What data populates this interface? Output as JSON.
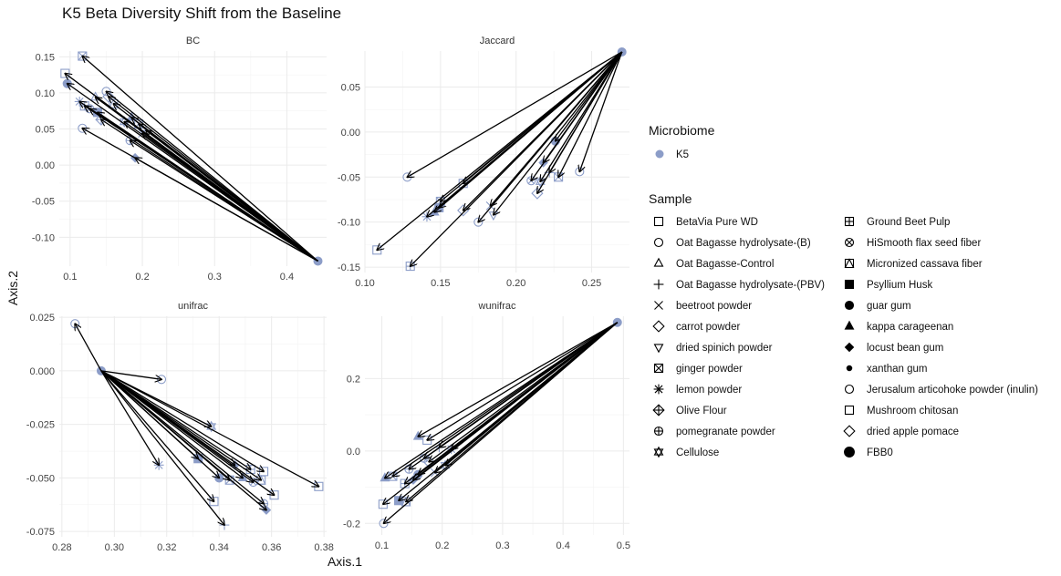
{
  "chart_data": {
    "type": "scatter",
    "title": "K5 Beta Diversity Shift from the Baseline",
    "xlabel": "Axis.1",
    "ylabel": "Axis.2",
    "grid": true,
    "legend_placement": "right",
    "colors": {
      "point": "#8C9DC8",
      "arrow": "#000000",
      "grid": "#EBEBEB"
    },
    "legend": {
      "microbiome_title": "Microbiome",
      "microbiome_items": [
        {
          "label": "K5",
          "color": "#8C9DC8"
        }
      ],
      "sample_title": "Sample",
      "sample_items": [
        {
          "label": "BetaVia Pure WD",
          "shape": "square-open"
        },
        {
          "label": "Oat Bagasse hydrolysate-(B)",
          "shape": "circle-open"
        },
        {
          "label": "Oat Bagasse-Control",
          "shape": "triangle-open"
        },
        {
          "label": "Oat Bagasse hydrolysate-(PBV)",
          "shape": "plus"
        },
        {
          "label": "beetroot powder",
          "shape": "cross"
        },
        {
          "label": "carrot powder",
          "shape": "diamond-open"
        },
        {
          "label": "dried spinich powder",
          "shape": "triangle-down-open"
        },
        {
          "label": "ginger powder",
          "shape": "square-cross"
        },
        {
          "label": "lemon powder",
          "shape": "asterisk"
        },
        {
          "label": "Olive Flour",
          "shape": "diamond-plus"
        },
        {
          "label": "pomegranate powder",
          "shape": "circle-plus"
        },
        {
          "label": "Cellulose",
          "shape": "star-of-david"
        },
        {
          "label": "Ground Beet Pulp",
          "shape": "square-plus"
        },
        {
          "label": "HiSmooth flax seed fiber",
          "shape": "circle-cross"
        },
        {
          "label": "Micronized cassava fiber",
          "shape": "square-triangle"
        },
        {
          "label": "Psyllium Husk",
          "shape": "square-filled"
        },
        {
          "label": "guar gum",
          "shape": "circle-filled"
        },
        {
          "label": "kappa carageenan",
          "shape": "triangle-filled"
        },
        {
          "label": "locust bean gum",
          "shape": "diamond-filled"
        },
        {
          "label": "xanthan gum",
          "shape": "dot-small"
        },
        {
          "label": "Jerusalum articohoke powder (inulin)",
          "shape": "circle-open"
        },
        {
          "label": "Mushroom chitosan",
          "shape": "square-open"
        },
        {
          "label": "dried apple pomace",
          "shape": "diamond-open"
        },
        {
          "label": "FBB0",
          "shape": "circle-filled-large"
        }
      ]
    },
    "panels": [
      {
        "name": "BC",
        "xlim": [
          0.085,
          0.455
        ],
        "ylim": [
          -0.14,
          0.158
        ],
        "xticks": [
          0.1,
          0.2,
          0.3,
          0.4
        ],
        "xtick_labels": [
          "0.1",
          "0.2",
          "0.3",
          "0.4"
        ],
        "yticks": [
          -0.1,
          -0.05,
          0.0,
          0.05,
          0.1,
          0.15
        ],
        "ytick_labels": [
          "-0.10",
          "-0.05",
          "0.00",
          "0.05",
          "0.10",
          "0.15"
        ],
        "baseline": [
          0.443,
          -0.133
        ],
        "points": [
          {
            "x": 0.117,
            "y": 0.151,
            "shape": "square-cross"
          },
          {
            "x": 0.093,
            "y": 0.127,
            "shape": "square-open"
          },
          {
            "x": 0.096,
            "y": 0.113,
            "shape": "circle-filled"
          },
          {
            "x": 0.15,
            "y": 0.102,
            "shape": "circle-open"
          },
          {
            "x": 0.153,
            "y": 0.095,
            "shape": "diamond-open"
          },
          {
            "x": 0.135,
            "y": 0.094,
            "shape": "triangle-open"
          },
          {
            "x": 0.16,
            "y": 0.085,
            "shape": "square-triangle"
          },
          {
            "x": 0.113,
            "y": 0.088,
            "shape": "asterisk"
          },
          {
            "x": 0.12,
            "y": 0.082,
            "shape": "square-plus"
          },
          {
            "x": 0.127,
            "y": 0.078,
            "shape": "circle-cross"
          },
          {
            "x": 0.138,
            "y": 0.073,
            "shape": "square-filled"
          },
          {
            "x": 0.143,
            "y": 0.063,
            "shape": "diamond-plus"
          },
          {
            "x": 0.175,
            "y": 0.06,
            "shape": "star-of-david"
          },
          {
            "x": 0.185,
            "y": 0.066,
            "shape": "triangle-filled"
          },
          {
            "x": 0.195,
            "y": 0.057,
            "shape": "square-cross"
          },
          {
            "x": 0.205,
            "y": 0.048,
            "shape": "plus"
          },
          {
            "x": 0.2,
            "y": 0.044,
            "shape": "cross"
          },
          {
            "x": 0.117,
            "y": 0.051,
            "shape": "circle-open"
          },
          {
            "x": 0.183,
            "y": 0.034,
            "shape": "circle-plus"
          },
          {
            "x": 0.19,
            "y": 0.01,
            "shape": "diamond-filled"
          }
        ]
      },
      {
        "name": "Jaccard",
        "xlim": [
          0.1,
          0.275
        ],
        "ylim": [
          -0.156,
          0.09
        ],
        "xticks": [
          0.1,
          0.15,
          0.2,
          0.25
        ],
        "xtick_labels": [
          "0.10",
          "0.15",
          "0.20",
          "0.25"
        ],
        "yticks": [
          -0.15,
          -0.1,
          -0.05,
          0.0,
          0.05
        ],
        "ytick_labels": [
          "-0.15",
          "-0.10",
          "-0.05",
          "0.00",
          "0.05"
        ],
        "baseline": [
          0.27,
          0.089
        ],
        "points": [
          {
            "x": 0.108,
            "y": -0.131,
            "shape": "square-open"
          },
          {
            "x": 0.13,
            "y": -0.149,
            "shape": "square-plus"
          },
          {
            "x": 0.128,
            "y": -0.05,
            "shape": "circle-open"
          },
          {
            "x": 0.141,
            "y": -0.094,
            "shape": "asterisk"
          },
          {
            "x": 0.146,
            "y": -0.089,
            "shape": "triangle-filled"
          },
          {
            "x": 0.149,
            "y": -0.084,
            "shape": "square-filled"
          },
          {
            "x": 0.15,
            "y": -0.077,
            "shape": "square-cross"
          },
          {
            "x": 0.165,
            "y": -0.057,
            "shape": "square-open"
          },
          {
            "x": 0.165,
            "y": -0.087,
            "shape": "diamond-open"
          },
          {
            "x": 0.175,
            "y": -0.1,
            "shape": "circle-open"
          },
          {
            "x": 0.183,
            "y": -0.082,
            "shape": "cross"
          },
          {
            "x": 0.185,
            "y": -0.092,
            "shape": "triangle-down-open"
          },
          {
            "x": 0.21,
            "y": -0.054,
            "shape": "circle-cross"
          },
          {
            "x": 0.214,
            "y": -0.068,
            "shape": "diamond-open"
          },
          {
            "x": 0.218,
            "y": -0.034,
            "shape": "diamond-filled"
          },
          {
            "x": 0.222,
            "y": -0.045,
            "shape": "plus"
          },
          {
            "x": 0.226,
            "y": -0.01,
            "shape": "circle-filled"
          },
          {
            "x": 0.228,
            "y": -0.05,
            "shape": "square-cross"
          },
          {
            "x": 0.242,
            "y": -0.044,
            "shape": "circle-open"
          },
          {
            "x": 0.216,
            "y": -0.055,
            "shape": "star-of-david"
          }
        ]
      },
      {
        "name": "unifrac",
        "xlim": [
          0.279,
          0.381
        ],
        "ylim": [
          -0.0775,
          0.0255
        ],
        "xticks": [
          0.28,
          0.3,
          0.32,
          0.34,
          0.36,
          0.38
        ],
        "xtick_labels": [
          "0.28",
          "0.30",
          "0.32",
          "0.34",
          "0.36",
          "0.38"
        ],
        "yticks": [
          -0.075,
          -0.05,
          -0.025,
          0.0,
          0.025
        ],
        "ytick_labels": [
          "-0.075",
          "-0.050",
          "-0.025",
          "0.000",
          "0.025"
        ],
        "baseline": [
          0.295,
          0.0
        ],
        "points": [
          {
            "x": 0.285,
            "y": 0.022,
            "shape": "circle-open"
          },
          {
            "x": 0.318,
            "y": -0.004,
            "shape": "circle-open"
          },
          {
            "x": 0.317,
            "y": -0.044,
            "shape": "asterisk"
          },
          {
            "x": 0.337,
            "y": -0.026,
            "shape": "star-of-david"
          },
          {
            "x": 0.332,
            "y": -0.041,
            "shape": "square-filled"
          },
          {
            "x": 0.338,
            "y": -0.061,
            "shape": "square-open"
          },
          {
            "x": 0.342,
            "y": -0.072,
            "shape": "plus"
          },
          {
            "x": 0.34,
            "y": -0.05,
            "shape": "circle-filled"
          },
          {
            "x": 0.344,
            "y": -0.051,
            "shape": "square-cross"
          },
          {
            "x": 0.346,
            "y": -0.044,
            "shape": "diamond-filled"
          },
          {
            "x": 0.349,
            "y": -0.05,
            "shape": "triangle-filled"
          },
          {
            "x": 0.352,
            "y": -0.046,
            "shape": "square-plus"
          },
          {
            "x": 0.353,
            "y": -0.052,
            "shape": "circle-cross"
          },
          {
            "x": 0.356,
            "y": -0.051,
            "shape": "square-triangle"
          },
          {
            "x": 0.357,
            "y": -0.047,
            "shape": "square-open"
          },
          {
            "x": 0.357,
            "y": -0.062,
            "shape": "circle-plus"
          },
          {
            "x": 0.358,
            "y": -0.065,
            "shape": "diamond-filled"
          },
          {
            "x": 0.361,
            "y": -0.058,
            "shape": "square-open"
          },
          {
            "x": 0.378,
            "y": -0.054,
            "shape": "square-open"
          }
        ]
      },
      {
        "name": "wunifrac",
        "xlim": [
          0.072,
          0.51
        ],
        "ylim": [
          -0.232,
          0.372
        ],
        "xticks": [
          0.1,
          0.2,
          0.3,
          0.4,
          0.5
        ],
        "xtick_labels": [
          "0.1",
          "0.2",
          "0.3",
          "0.4",
          "0.5"
        ],
        "yticks": [
          -0.2,
          0.0,
          0.2
        ],
        "ytick_labels": [
          "-0.2",
          "0.0",
          "0.2"
        ],
        "baseline": [
          0.49,
          0.355
        ],
        "points": [
          {
            "x": 0.103,
            "y": -0.2,
            "shape": "circle-open"
          },
          {
            "x": 0.102,
            "y": -0.147,
            "shape": "square-open"
          },
          {
            "x": 0.105,
            "y": -0.075,
            "shape": "triangle-filled"
          },
          {
            "x": 0.118,
            "y": -0.07,
            "shape": "square-cross"
          },
          {
            "x": 0.128,
            "y": -0.137,
            "shape": "square-filled"
          },
          {
            "x": 0.14,
            "y": -0.14,
            "shape": "square-triangle"
          },
          {
            "x": 0.138,
            "y": -0.09,
            "shape": "square-plus"
          },
          {
            "x": 0.145,
            "y": -0.05,
            "shape": "circle-plus"
          },
          {
            "x": 0.152,
            "y": -0.08,
            "shape": "diamond-filled"
          },
          {
            "x": 0.16,
            "y": -0.065,
            "shape": "circle-filled"
          },
          {
            "x": 0.16,
            "y": 0.04,
            "shape": "triangle-filled"
          },
          {
            "x": 0.17,
            "y": -0.02,
            "shape": "circle-cross"
          },
          {
            "x": 0.175,
            "y": 0.03,
            "shape": "square-open"
          },
          {
            "x": 0.178,
            "y": -0.03,
            "shape": "diamond-open"
          },
          {
            "x": 0.188,
            "y": -0.06,
            "shape": "cross"
          },
          {
            "x": 0.195,
            "y": 0.01,
            "shape": "plus"
          },
          {
            "x": 0.205,
            "y": -0.04,
            "shape": "star-of-david"
          },
          {
            "x": 0.215,
            "y": 0.005,
            "shape": "asterisk"
          }
        ]
      }
    ]
  }
}
